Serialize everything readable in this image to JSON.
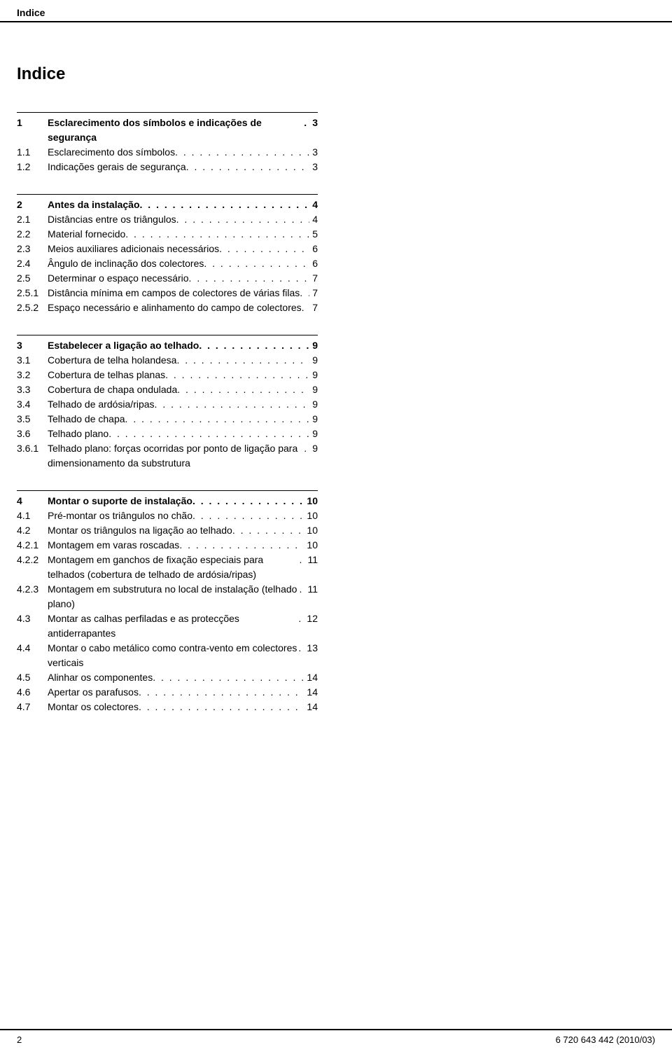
{
  "header": "Indice",
  "title": "Indice",
  "sections": [
    {
      "entries": [
        {
          "num": "1",
          "text": "Esclarecimento dos símbolos e indicações de segurança",
          "page": "3",
          "bold": true
        },
        {
          "num": "1.1",
          "text": "Esclarecimento dos símbolos",
          "page": "3",
          "bold": false
        },
        {
          "num": "1.2",
          "text": "Indicações gerais de segurança",
          "page": "3",
          "bold": false
        }
      ]
    },
    {
      "entries": [
        {
          "num": "2",
          "text": "Antes da instalação",
          "page": "4",
          "bold": true
        },
        {
          "num": "2.1",
          "text": "Distâncias entre os triângulos",
          "page": "4",
          "bold": false
        },
        {
          "num": "2.2",
          "text": "Material fornecido",
          "page": "5",
          "bold": false
        },
        {
          "num": "2.3",
          "text": "Meios auxiliares adicionais necessários",
          "page": "6",
          "bold": false
        },
        {
          "num": "2.4",
          "text": "Ângulo de inclinação dos colectores",
          "page": "6",
          "bold": false
        },
        {
          "num": "2.5",
          "text": "Determinar o espaço necessário",
          "page": "7",
          "bold": false
        },
        {
          "num": "2.5.1",
          "text": "Distância mínima em campos de colectores de várias filas",
          "page": "7",
          "bold": false
        },
        {
          "num": "2.5.2",
          "text": "Espaço necessário e alinhamento do campo de colectores",
          "page": "7",
          "bold": false
        }
      ]
    },
    {
      "entries": [
        {
          "num": "3",
          "text": "Estabelecer a ligação ao telhado",
          "page": "9",
          "bold": true
        },
        {
          "num": "3.1",
          "text": "Cobertura de telha holandesa",
          "page": "9",
          "bold": false
        },
        {
          "num": "3.2",
          "text": "Cobertura de telhas planas",
          "page": "9",
          "bold": false
        },
        {
          "num": "3.3",
          "text": "Cobertura de chapa ondulada",
          "page": "9",
          "bold": false
        },
        {
          "num": "3.4",
          "text": "Telhado de ardósia/ripas",
          "page": "9",
          "bold": false
        },
        {
          "num": "3.5",
          "text": "Telhado de chapa",
          "page": "9",
          "bold": false
        },
        {
          "num": "3.6",
          "text": "Telhado plano",
          "page": "9",
          "bold": false
        },
        {
          "num": "3.6.1",
          "text": "Telhado plano: forças ocorridas por ponto de ligação para dimensionamento da substrutura",
          "page": "9",
          "bold": false
        }
      ]
    },
    {
      "entries": [
        {
          "num": "4",
          "text": "Montar o suporte de instalação",
          "page": "10",
          "bold": true
        },
        {
          "num": "4.1",
          "text": "Pré-montar os triângulos no chão",
          "page": "10",
          "bold": false
        },
        {
          "num": "4.2",
          "text": "Montar os triângulos na ligação ao telhado",
          "page": "10",
          "bold": false
        },
        {
          "num": "4.2.1",
          "text": "Montagem em varas roscadas",
          "page": "10",
          "bold": false
        },
        {
          "num": "4.2.2",
          "text": "Montagem em ganchos de fixação especiais para telhados (cobertura de telhado de ardósia/ripas)",
          "page": "11",
          "bold": false
        },
        {
          "num": "4.2.3",
          "text": "Montagem em substrutura no local de instalação (telhado plano)",
          "page": "11",
          "bold": false
        },
        {
          "num": "4.3",
          "text": "Montar as calhas perfiladas e as protecções antiderrapantes",
          "page": "12",
          "bold": false
        },
        {
          "num": "4.4",
          "text": "Montar o cabo metálico como contra-vento em colectores verticais",
          "page": "13",
          "bold": false
        },
        {
          "num": "4.5",
          "text": "Alinhar os componentes",
          "page": "14",
          "bold": false
        },
        {
          "num": "4.6",
          "text": "Apertar os parafusos",
          "page": "14",
          "bold": false
        },
        {
          "num": "4.7",
          "text": "Montar os colectores",
          "page": "14",
          "bold": false
        }
      ]
    }
  ],
  "footer": {
    "page_number": "2",
    "doc_ref": "6 720 643 442 (2010/03)"
  },
  "dots_fill": ". . . . . . . . . . . . . . . . . . . . . . . . . . . . . . . . . . . . . . . . . . . . . . . . . ."
}
